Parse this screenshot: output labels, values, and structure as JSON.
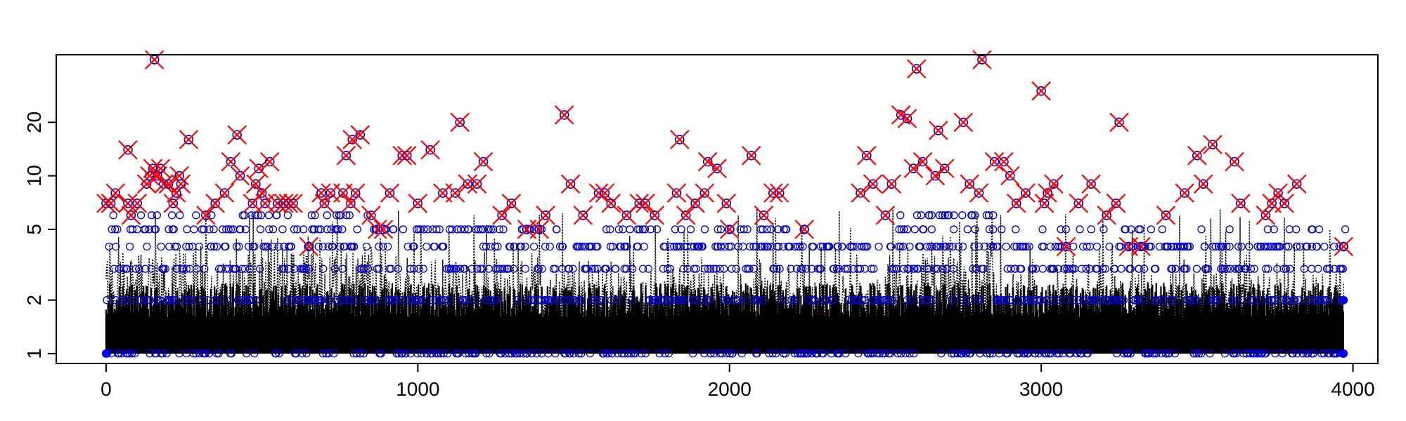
{
  "chart_data": {
    "type": "scatter",
    "title": "",
    "xlabel": "",
    "ylabel": "",
    "log_y": true,
    "xlim": [
      -160,
      4080
    ],
    "ylim": [
      0.88,
      48
    ],
    "x_ticks": [
      0,
      1000,
      2000,
      3000,
      4000
    ],
    "x_tick_labels": [
      "0",
      "1000",
      "2000",
      "3000",
      "4000"
    ],
    "y_ticks": [
      1,
      2,
      5,
      10,
      20
    ],
    "y_tick_labels": [
      "1",
      "2",
      "5",
      "10",
      "20"
    ],
    "grid": false,
    "legend": "none",
    "colors": {
      "line": "#000000",
      "open_circle": "#0000cc",
      "cross": "#ff0000",
      "filled_circle": "#0000ff"
    },
    "series": [
      {
        "kind": "dotted-line",
        "description_points": "dense per-index values 1-7 over x=0..3970"
      },
      {
        "kind": "highlighted-points",
        "points": [
          [
            0,
            7
          ],
          [
            15,
            7
          ],
          [
            30,
            8
          ],
          [
            70,
            7
          ],
          [
            70,
            14
          ],
          [
            80,
            6
          ],
          [
            100,
            7
          ],
          [
            130,
            9
          ],
          [
            140,
            10
          ],
          [
            150,
            11
          ],
          [
            155,
            45
          ],
          [
            165,
            10
          ],
          [
            175,
            11
          ],
          [
            185,
            9
          ],
          [
            200,
            9
          ],
          [
            215,
            7
          ],
          [
            225,
            8
          ],
          [
            235,
            10
          ],
          [
            240,
            9
          ],
          [
            265,
            16
          ],
          [
            320,
            6
          ],
          [
            350,
            7
          ],
          [
            380,
            8
          ],
          [
            400,
            12
          ],
          [
            420,
            17
          ],
          [
            430,
            10
          ],
          [
            470,
            7
          ],
          [
            480,
            9
          ],
          [
            490,
            11
          ],
          [
            500,
            8
          ],
          [
            510,
            7
          ],
          [
            525,
            12
          ],
          [
            550,
            7
          ],
          [
            570,
            7
          ],
          [
            585,
            7
          ],
          [
            600,
            7
          ],
          [
            650,
            4
          ],
          [
            690,
            8
          ],
          [
            700,
            7
          ],
          [
            720,
            8
          ],
          [
            760,
            8
          ],
          [
            770,
            13
          ],
          [
            785,
            7
          ],
          [
            790,
            16
          ],
          [
            800,
            8
          ],
          [
            815,
            17
          ],
          [
            850,
            6
          ],
          [
            870,
            5
          ],
          [
            890,
            5
          ],
          [
            910,
            8
          ],
          [
            950,
            13
          ],
          [
            965,
            13
          ],
          [
            1000,
            7
          ],
          [
            1040,
            14
          ],
          [
            1080,
            8
          ],
          [
            1120,
            8
          ],
          [
            1135,
            20
          ],
          [
            1160,
            9
          ],
          [
            1190,
            9
          ],
          [
            1210,
            12
          ],
          [
            1270,
            6
          ],
          [
            1300,
            7
          ],
          [
            1350,
            5
          ],
          [
            1390,
            5
          ],
          [
            1410,
            6
          ],
          [
            1470,
            22
          ],
          [
            1490,
            9
          ],
          [
            1530,
            6
          ],
          [
            1580,
            8
          ],
          [
            1600,
            8
          ],
          [
            1620,
            7
          ],
          [
            1670,
            6
          ],
          [
            1710,
            7
          ],
          [
            1730,
            7
          ],
          [
            1760,
            6
          ],
          [
            1830,
            8
          ],
          [
            1840,
            16
          ],
          [
            1860,
            6
          ],
          [
            1890,
            7
          ],
          [
            1920,
            8
          ],
          [
            1930,
            12
          ],
          [
            1960,
            11
          ],
          [
            1990,
            7
          ],
          [
            2000,
            5
          ],
          [
            2070,
            13
          ],
          [
            2110,
            6
          ],
          [
            2140,
            8
          ],
          [
            2160,
            8
          ],
          [
            2240,
            5
          ],
          [
            2420,
            8
          ],
          [
            2440,
            13
          ],
          [
            2460,
            9
          ],
          [
            2500,
            6
          ],
          [
            2520,
            9
          ],
          [
            2550,
            22
          ],
          [
            2570,
            21
          ],
          [
            2590,
            11
          ],
          [
            2600,
            40
          ],
          [
            2620,
            12
          ],
          [
            2660,
            10
          ],
          [
            2670,
            18
          ],
          [
            2690,
            11
          ],
          [
            2750,
            20
          ],
          [
            2770,
            9
          ],
          [
            2800,
            8
          ],
          [
            2810,
            45
          ],
          [
            2850,
            12
          ],
          [
            2880,
            12
          ],
          [
            2900,
            10
          ],
          [
            2920,
            7
          ],
          [
            2950,
            8
          ],
          [
            3000,
            30
          ],
          [
            3010,
            7
          ],
          [
            3020,
            8
          ],
          [
            3040,
            9
          ],
          [
            3080,
            4
          ],
          [
            3120,
            7
          ],
          [
            3160,
            9
          ],
          [
            3210,
            6
          ],
          [
            3240,
            7
          ],
          [
            3250,
            20
          ],
          [
            3280,
            4
          ],
          [
            3320,
            4
          ],
          [
            3400,
            6
          ],
          [
            3460,
            8
          ],
          [
            3500,
            13
          ],
          [
            3520,
            9
          ],
          [
            3550,
            15
          ],
          [
            3620,
            12
          ],
          [
            3640,
            7
          ],
          [
            3720,
            6
          ],
          [
            3740,
            7
          ],
          [
            3760,
            8
          ],
          [
            3780,
            7
          ],
          [
            3820,
            9
          ],
          [
            3970,
            4
          ]
        ]
      }
    ]
  }
}
